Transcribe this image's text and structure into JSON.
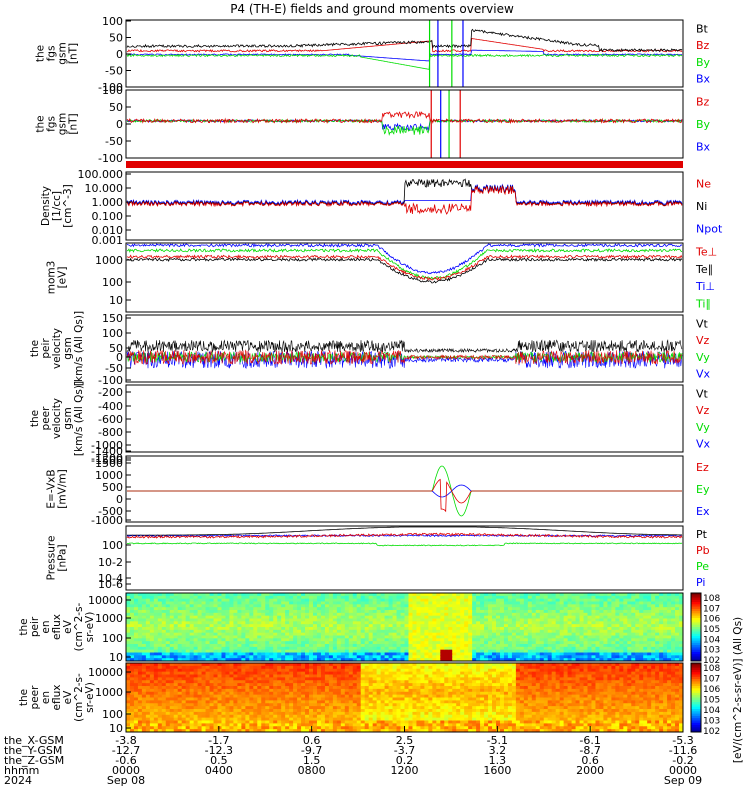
{
  "title": "P4 (TH-E) fields and ground moments overview",
  "colors": {
    "black": "#000000",
    "red": "#e00000",
    "green": "#00dd00",
    "blue": "#0000ff"
  },
  "chart_data": [
    {
      "type": "line",
      "ylabel": [
        "the",
        "fgs",
        "gsm",
        "[nT]"
      ],
      "yticks": [
        "100",
        "50",
        "0",
        "-50",
        "-100"
      ],
      "ylim": [
        -100,
        100
      ],
      "legend": [
        {
          "name": "Bt",
          "color": "#000000"
        },
        {
          "name": "Bz",
          "color": "#e00000"
        },
        {
          "name": "By",
          "color": "#00dd00"
        },
        {
          "name": "Bx",
          "color": "#0000ff"
        }
      ]
    },
    {
      "type": "line",
      "ylabel": [
        "the",
        "fgs",
        "gsm",
        "[nT]"
      ],
      "yticks": [
        "100",
        "50",
        "0",
        "-50",
        "-100"
      ],
      "ylim": [
        -120,
        100
      ],
      "legend": [
        {
          "name": "Bz",
          "color": "#e00000"
        },
        {
          "name": "By",
          "color": "#00dd00"
        },
        {
          "name": "Bx",
          "color": "#0000ff"
        }
      ]
    },
    {
      "type": "line",
      "scale": "log",
      "ylabel": [
        "Density",
        "[1/cc]",
        "[cm^-3]"
      ],
      "yticks": [
        "100.000",
        "10.000",
        "1.000",
        "0.100",
        "0.010",
        "0.001"
      ],
      "legend": [
        {
          "name": "Ne",
          "color": "#e00000"
        },
        {
          "name": "Ni",
          "color": "#000000"
        },
        {
          "name": "Npot",
          "color": "#0000ff"
        }
      ]
    },
    {
      "type": "line",
      "scale": "log",
      "ylabel": [
        "mom3",
        "[eV]"
      ],
      "yticks": [
        "1000",
        "100",
        "10"
      ],
      "legend": [
        {
          "name": "Te⊥",
          "color": "#e00000"
        },
        {
          "name": "Te∥",
          "color": "#000000"
        },
        {
          "name": "Ti⊥",
          "color": "#0000ff"
        },
        {
          "name": "Ti∥",
          "color": "#00dd00"
        }
      ]
    },
    {
      "type": "line",
      "ylabel": [
        "the",
        "peir",
        "velocity",
        "gsm",
        "[km/s (All Qs)]"
      ],
      "yticks": [
        "150",
        "100",
        "50",
        "0",
        "-50",
        "-100"
      ],
      "ylim": [
        -100,
        170
      ],
      "legend": [
        {
          "name": "Vt",
          "color": "#000000"
        },
        {
          "name": "Vz",
          "color": "#e00000"
        },
        {
          "name": "Vy",
          "color": "#00dd00"
        },
        {
          "name": "Vx",
          "color": "#0000ff"
        }
      ]
    },
    {
      "type": "line",
      "ylabel": [
        "the",
        "peer",
        "velocity",
        "gsm",
        "[km/s (All Qs)]"
      ],
      "yticks": [
        "-200",
        "-400",
        "-600",
        "-800",
        "-1000",
        "-1200",
        "-1400"
      ],
      "ylim": [
        -1450,
        -100
      ],
      "legend": [
        {
          "name": "Vt",
          "color": "#000000"
        },
        {
          "name": "Vz",
          "color": "#e00000"
        },
        {
          "name": "Vy",
          "color": "#00dd00"
        },
        {
          "name": "Vx",
          "color": "#0000ff"
        }
      ]
    },
    {
      "type": "line",
      "ylabel": [
        "E=-VxB",
        "[mV/m]"
      ],
      "yticks": [
        "1500",
        "1000",
        "500",
        "0",
        "-500",
        "-1000",
        "-1500"
      ],
      "ylim": [
        -1600,
        1600
      ],
      "legend": [
        {
          "name": "Ez",
          "color": "#e00000"
        },
        {
          "name": "Ey",
          "color": "#00dd00"
        },
        {
          "name": "Ex",
          "color": "#0000ff"
        }
      ]
    },
    {
      "type": "line",
      "scale": "log",
      "ylabel": [
        "Pressure",
        "[nPa]"
      ],
      "yticks": [
        "10^0",
        "10^-2",
        "10^-4",
        "10^-6"
      ],
      "legend": [
        {
          "name": "Pt",
          "color": "#000000"
        },
        {
          "name": "Pb",
          "color": "#e00000"
        },
        {
          "name": "Pe",
          "color": "#00dd00"
        },
        {
          "name": "Pi",
          "color": "#0000ff"
        }
      ]
    },
    {
      "type": "heatmap",
      "ylabel": [
        "the",
        "peir",
        "en",
        "eflux",
        "eV",
        "(cm^2-s-",
        "sr-eV)"
      ],
      "yticks": [
        "10000",
        "1000",
        "100",
        "10"
      ]
    },
    {
      "type": "heatmap",
      "ylabel": [
        "the",
        "peer",
        "en",
        "eflux",
        "eV",
        "(cm^2-s-",
        "sr-eV)"
      ],
      "yticks": [
        "10000",
        "1000",
        "100",
        "10"
      ]
    }
  ],
  "colorbar": {
    "label": "[eV/(cm^2-s-sr-eV)] (All Qs)",
    "ticks_upper": [
      "10^8",
      "10^7",
      "10^6",
      "10^5",
      "10^4",
      "10^3",
      "10^2"
    ],
    "ticks_lower": [
      "10^8",
      "10^7",
      "10^6",
      "10^5",
      "10^4",
      "10^3",
      "10^2"
    ]
  },
  "x_axis": {
    "row_labels": [
      "the_X-GSM",
      "the_Y-GSM",
      "the_Z-GSM",
      "hhmm",
      "2024"
    ],
    "ticks": [
      {
        "x_gsm": "-3.8",
        "y_gsm": "-12.7",
        "z_gsm": "-0.6",
        "hhmm": "0000",
        "date": "Sep 08"
      },
      {
        "x_gsm": "-1.7",
        "y_gsm": "-12.3",
        "z_gsm": "0.5",
        "hhmm": "0400",
        "date": ""
      },
      {
        "x_gsm": "0.6",
        "y_gsm": "-9.7",
        "z_gsm": "1.5",
        "hhmm": "0800",
        "date": ""
      },
      {
        "x_gsm": "2.5",
        "y_gsm": "-3.7",
        "z_gsm": "0.2",
        "hhmm": "1200",
        "date": ""
      },
      {
        "x_gsm": "-5.1",
        "y_gsm": "3.2",
        "z_gsm": "1.3",
        "hhmm": "1600",
        "date": ""
      },
      {
        "x_gsm": "-6.1",
        "y_gsm": "-8.7",
        "z_gsm": "0.6",
        "hhmm": "2000",
        "date": ""
      },
      {
        "x_gsm": "-5.3",
        "y_gsm": "-11.6",
        "z_gsm": "-0.2",
        "hhmm": "0000",
        "date": "Sep 09"
      }
    ]
  }
}
